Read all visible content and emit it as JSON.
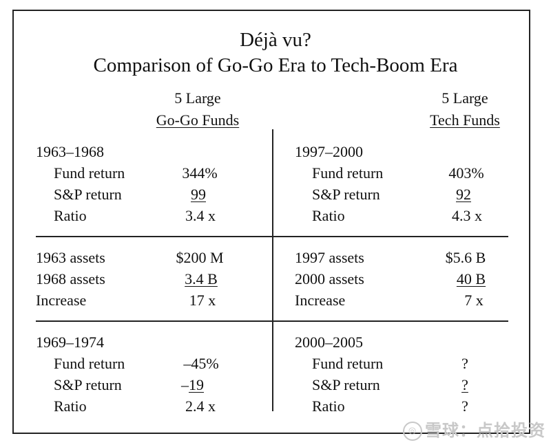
{
  "title": {
    "line1": "Déjà vu?",
    "line2": "Comparison of Go-Go Era to Tech-Boom Era"
  },
  "left_header": {
    "line1": "5 Large",
    "line2": "Go-Go Funds"
  },
  "right_header": {
    "line1": "5 Large",
    "line2": "Tech Funds"
  },
  "left": {
    "period1": "1963–1968",
    "p1_rows": [
      {
        "label": "Fund return",
        "value": "344%"
      },
      {
        "label": "S&P return",
        "value": "99"
      },
      {
        "label": "Ratio",
        "value": "3.4 x"
      }
    ],
    "assets_rows": [
      {
        "label": "1963 assets",
        "value": "$200 M"
      },
      {
        "label": "1968 assets",
        "value": "3.4 B"
      },
      {
        "label": "Increase",
        "value": "17 x"
      }
    ],
    "period2": "1969–1974",
    "p2_rows": [
      {
        "label": "Fund return",
        "value": "–45%"
      },
      {
        "label": "S&P return",
        "value_prefix": "–",
        "value": "19"
      },
      {
        "label": "Ratio",
        "value": "2.4 x"
      }
    ]
  },
  "right": {
    "period1": "1997–2000",
    "p1_rows": [
      {
        "label": "Fund return",
        "value": "403%"
      },
      {
        "label": "S&P return",
        "value": "92"
      },
      {
        "label": "Ratio",
        "value": "4.3 x"
      }
    ],
    "assets_rows": [
      {
        "label": "1997 assets",
        "value": "$5.6 B"
      },
      {
        "label": "2000 assets",
        "value": "40 B"
      },
      {
        "label": "Increase",
        "value": "7 x"
      }
    ],
    "period2": "2000–2005",
    "p2_rows": [
      {
        "label": "Fund return",
        "value": "?"
      },
      {
        "label": "S&P return",
        "value": "?"
      },
      {
        "label": "Ratio",
        "value": "?"
      }
    ]
  },
  "watermark": {
    "icon": "xueqiu-logo-icon",
    "text": "雪球：点拾投资"
  }
}
